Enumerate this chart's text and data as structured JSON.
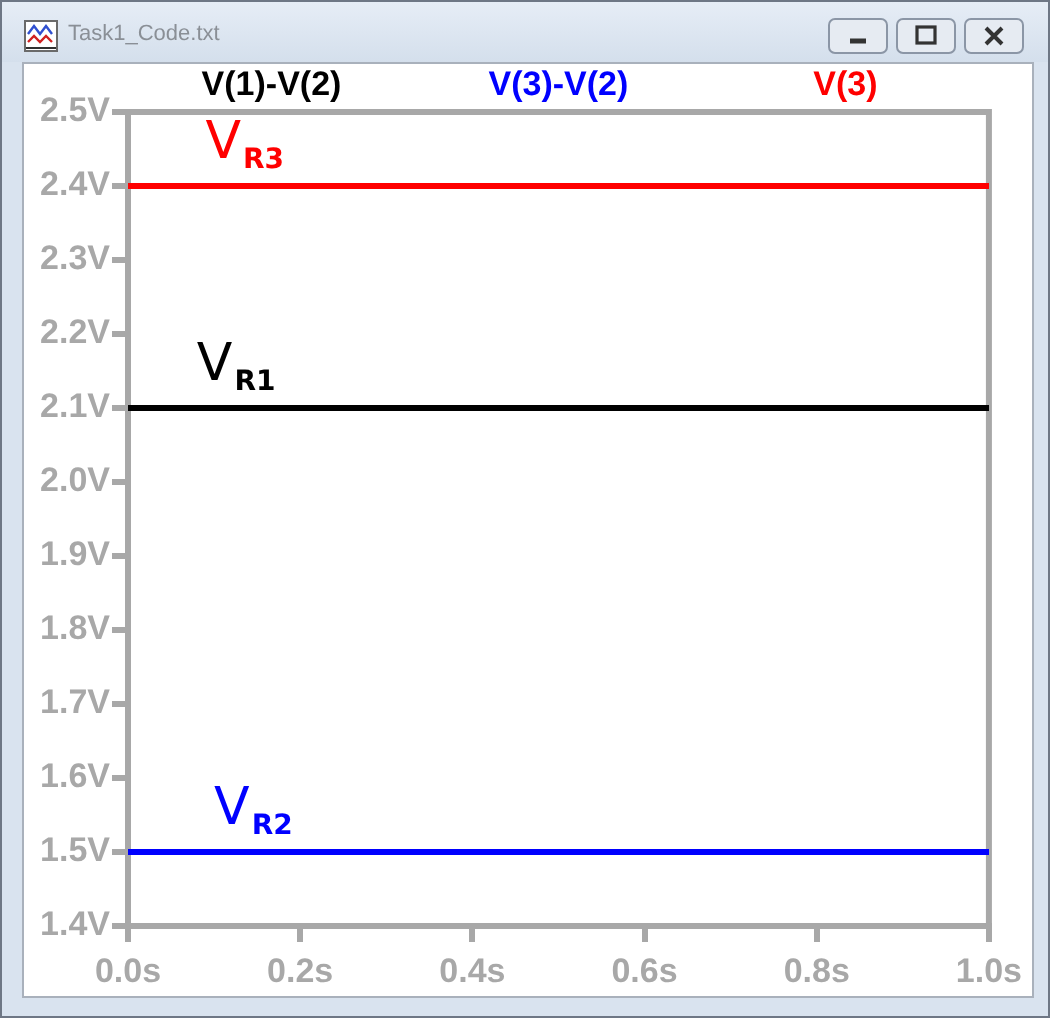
{
  "chart_data": {
    "type": "line",
    "title": "Task1_Code.txt",
    "x": [
      0,
      1
    ],
    "series": [
      {
        "name": "V(1)-V(2)",
        "color": "#000000",
        "values": [
          2.1,
          2.1
        ]
      },
      {
        "name": "V(3)-V(2)",
        "color": "#0000ff",
        "values": [
          1.5,
          1.5
        ]
      },
      {
        "name": "V(3)",
        "color": "#ff0000",
        "values": [
          2.4,
          2.4
        ]
      }
    ],
    "xlim": [
      0,
      1
    ],
    "xticks": [
      {
        "value": 0,
        "label": "0.0s"
      },
      {
        "value": 0.2,
        "label": "0.2s"
      },
      {
        "value": 0.4,
        "label": "0.4s"
      },
      {
        "value": 0.6,
        "label": "0.6s"
      },
      {
        "value": 0.8,
        "label": "0.8s"
      },
      {
        "value": 1,
        "label": "1.0s"
      }
    ],
    "ylim": [
      1.4,
      2.5
    ],
    "yticks": [
      {
        "value": 1.4,
        "label": "1.4V"
      },
      {
        "value": 1.5,
        "label": "1.5V"
      },
      {
        "value": 1.6,
        "label": "1.6V"
      },
      {
        "value": 1.7,
        "label": "1.7V"
      },
      {
        "value": 1.8,
        "label": "1.8V"
      },
      {
        "value": 1.9,
        "label": "1.9V"
      },
      {
        "value": 2.0,
        "label": "2.0V"
      },
      {
        "value": 2.1,
        "label": "2.1V"
      },
      {
        "value": 2.2,
        "label": "2.2V"
      },
      {
        "value": 2.3,
        "label": "2.3V"
      },
      {
        "value": 2.4,
        "label": "2.4V"
      },
      {
        "value": 2.5,
        "label": "2.5V"
      }
    ],
    "annotations": [
      {
        "text": "V$_{R3}$",
        "x": 0.09,
        "y": 2.4
      },
      {
        "text": "V$_{R1}$",
        "x": 0.08,
        "y": 2.1
      },
      {
        "text": "V$_{R2}$",
        "x": 0.1,
        "y": 1.5
      }
    ],
    "legend": "top"
  }
}
